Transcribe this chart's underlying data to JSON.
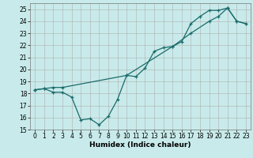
{
  "xlabel": "Humidex (Indice chaleur)",
  "bg_color": "#c8eaea",
  "grid_color": "#b0b0b0",
  "line_color": "#1a6b6b",
  "xlim": [
    -0.5,
    23.5
  ],
  "ylim": [
    15,
    25.5
  ],
  "yticks": [
    15,
    16,
    17,
    18,
    19,
    20,
    21,
    22,
    23,
    24,
    25
  ],
  "xticks": [
    0,
    1,
    2,
    3,
    4,
    5,
    6,
    7,
    8,
    9,
    10,
    11,
    12,
    13,
    14,
    15,
    16,
    17,
    18,
    19,
    20,
    21,
    22,
    23
  ],
  "line1_x": [
    0,
    1,
    2,
    3,
    4,
    5,
    6,
    7,
    8,
    9,
    10,
    11,
    12,
    13,
    14,
    15,
    16,
    17,
    18,
    19,
    20,
    21,
    22,
    23
  ],
  "line1_y": [
    18.3,
    18.4,
    18.1,
    18.1,
    17.7,
    15.8,
    15.9,
    15.4,
    16.1,
    17.5,
    19.5,
    19.4,
    20.1,
    21.5,
    21.8,
    21.9,
    22.3,
    23.8,
    24.4,
    24.9,
    24.9,
    25.1,
    24.0,
    23.8
  ],
  "line2_x": [
    0,
    1,
    2,
    3,
    10,
    15,
    17,
    19,
    20,
    21,
    22,
    23
  ],
  "line2_y": [
    18.3,
    18.4,
    18.5,
    18.5,
    19.5,
    21.9,
    23.0,
    24.0,
    24.4,
    25.1,
    24.0,
    23.8
  ]
}
